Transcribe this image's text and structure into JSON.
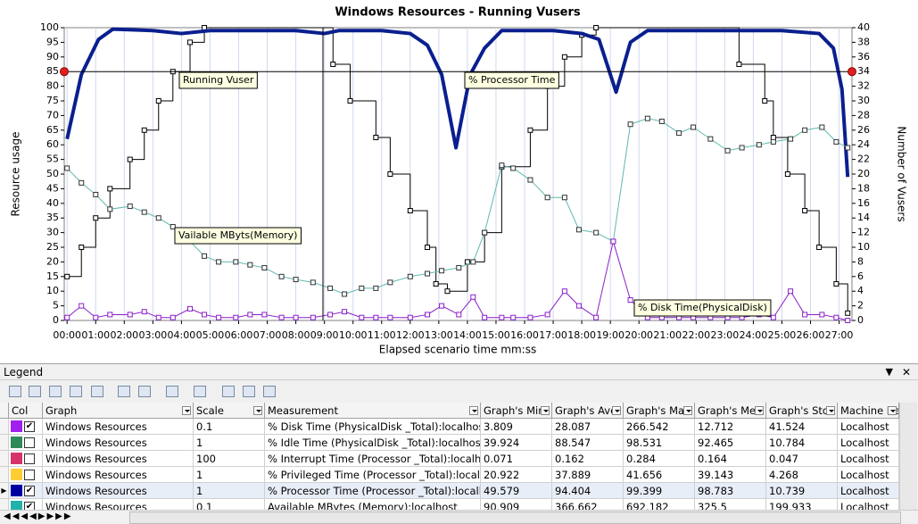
{
  "chart_data": {
    "type": "line",
    "title": "Windows Resources - Running Vusers",
    "xlabel": "Elapsed scenario time mm:ss",
    "ylabel": "Resource usage",
    "y2label": "Number of Vusers",
    "xlim": [
      -0.1,
      27.45
    ],
    "ylim": [
      0,
      100
    ],
    "y2lim": [
      0,
      40
    ],
    "xticks": [
      {
        "value": 0,
        "label": "00:00"
      },
      {
        "value": 1,
        "label": "01:00"
      },
      {
        "value": 2,
        "label": "02:00"
      },
      {
        "value": 3,
        "label": "03:00"
      },
      {
        "value": 4,
        "label": "04:00"
      },
      {
        "value": 5,
        "label": "05:00"
      },
      {
        "value": 6,
        "label": "06:00"
      },
      {
        "value": 7,
        "label": "07:00"
      },
      {
        "value": 8,
        "label": "08:00"
      },
      {
        "value": 9,
        "label": "09:00"
      },
      {
        "value": 10,
        "label": "10:00"
      },
      {
        "value": 11,
        "label": "11:00"
      },
      {
        "value": 12,
        "label": "12:00"
      },
      {
        "value": 13,
        "label": "13:00"
      },
      {
        "value": 14,
        "label": "14:00"
      },
      {
        "value": 15,
        "label": "15:00"
      },
      {
        "value": 16,
        "label": "16:00"
      },
      {
        "value": 17,
        "label": "17:00"
      },
      {
        "value": 18,
        "label": "18:00"
      },
      {
        "value": 19,
        "label": "19:00"
      },
      {
        "value": 20,
        "label": "20:00"
      },
      {
        "value": 21,
        "label": "21:00"
      },
      {
        "value": 22,
        "label": "22:00"
      },
      {
        "value": 23,
        "label": "23:00"
      },
      {
        "value": 24,
        "label": "24:00"
      },
      {
        "value": 25,
        "label": "25:00"
      },
      {
        "value": 26,
        "label": "26:00"
      },
      {
        "value": 27,
        "label": "27:00"
      }
    ],
    "yticks": [
      0,
      5,
      10,
      15,
      20,
      25,
      30,
      35,
      40,
      45,
      50,
      55,
      60,
      65,
      70,
      75,
      80,
      85,
      90,
      95,
      100
    ],
    "y2ticks": [
      0,
      2,
      4,
      6,
      8,
      10,
      12,
      14,
      16,
      18,
      20,
      22,
      24,
      26,
      28,
      30,
      32,
      34,
      36,
      38,
      40
    ],
    "grid": true,
    "series": [
      {
        "name": "Running Vuser",
        "color": "#000000",
        "axis": "y2",
        "step": true,
        "markers": true,
        "x": [
          0,
          0.5,
          1.0,
          1.5,
          2.2,
          2.7,
          3.2,
          3.7,
          4.3,
          4.8,
          9.3,
          9.9,
          10.8,
          11.3,
          12.0,
          12.6,
          12.9,
          13.3,
          14.0,
          14.6,
          15.2,
          16.2,
          16.8,
          17.4,
          18.0,
          18.5,
          23.5,
          24.4,
          24.7,
          25.2,
          25.8,
          26.3,
          26.9,
          27.3
        ],
        "values": [
          6,
          10,
          14,
          18,
          22,
          26,
          30,
          34,
          38,
          40,
          35,
          30,
          25,
          20,
          15,
          10,
          5,
          4,
          8,
          12,
          21,
          26,
          32,
          36,
          39,
          40,
          35,
          30,
          25,
          20,
          15,
          10,
          5,
          1
        ]
      },
      {
        "name": "% Processor Time",
        "color": "#0a1f8f",
        "markers": false,
        "x": [
          0,
          0.5,
          1.1,
          1.6,
          3,
          4,
          5,
          8,
          9,
          9.5,
          11,
          12,
          12.6,
          13.1,
          13.6,
          14.1,
          14.6,
          15.2,
          17,
          18,
          18.6,
          19.2,
          19.7,
          20.3,
          25,
          26.3,
          26.8,
          27.1,
          27.3
        ],
        "values": [
          62,
          84,
          96,
          99.5,
          99,
          98,
          99,
          99,
          98,
          99,
          99,
          98,
          94,
          84,
          59,
          84,
          93,
          99,
          99,
          98,
          96,
          78,
          95,
          99,
          99,
          98,
          93,
          79,
          49
        ]
      },
      {
        "name": "Vailable MByts(Memory)",
        "color": "#5fb8b0",
        "markers": true,
        "x": [
          0,
          0.5,
          1.0,
          1.5,
          2.2,
          2.7,
          3.2,
          3.7,
          4.3,
          4.8,
          5.3,
          5.9,
          6.4,
          6.9,
          7.5,
          8.0,
          8.6,
          9.2,
          9.7,
          10.3,
          10.8,
          11.3,
          12.0,
          12.6,
          13.1,
          13.7,
          14.2,
          14.6,
          15.2,
          15.6,
          16.2,
          16.8,
          17.4,
          17.9,
          18.5,
          19.1,
          19.7,
          20.3,
          20.8,
          21.4,
          21.9,
          22.5,
          23.1,
          23.6,
          24.2,
          24.7,
          25.3,
          25.8,
          26.4,
          26.9,
          27.3
        ],
        "values": [
          52,
          47,
          43,
          38,
          39,
          37,
          35,
          32,
          27,
          22,
          20,
          20,
          19,
          18,
          15,
          14,
          13,
          11,
          9,
          11,
          11,
          13,
          15,
          16,
          17,
          18,
          20,
          30,
          53,
          52,
          48,
          42,
          42,
          31,
          30,
          27,
          67,
          69,
          68,
          64,
          66,
          62,
          58,
          59,
          60,
          61,
          62,
          65,
          66,
          61,
          59
        ]
      },
      {
        "name": "% Disk Time(PhysicalDisk)",
        "color": "#8b1fc9",
        "markers": true,
        "x": [
          0,
          0.5,
          1.0,
          1.5,
          2.2,
          2.7,
          3.2,
          3.7,
          4.3,
          4.8,
          5.3,
          5.9,
          6.4,
          6.9,
          7.5,
          8.0,
          8.6,
          9.2,
          9.7,
          10.3,
          10.8,
          11.3,
          12.0,
          12.6,
          13.1,
          13.7,
          14.2,
          14.6,
          15.2,
          15.6,
          16.2,
          16.8,
          17.4,
          17.9,
          18.5,
          19.1,
          19.7,
          20.3,
          20.8,
          21.4,
          21.9,
          22.5,
          23.1,
          23.6,
          24.2,
          24.7,
          25.3,
          25.8,
          26.4,
          26.9,
          27.3
        ],
        "values": [
          1,
          5,
          1,
          2,
          2,
          3,
          1,
          1,
          4,
          2,
          1,
          1,
          2,
          2,
          1,
          1,
          1,
          2,
          3,
          1,
          1,
          1,
          1,
          2,
          5,
          2,
          8,
          1,
          1,
          1,
          1,
          2,
          10,
          5,
          1,
          27,
          7,
          1,
          1,
          1,
          1,
          1,
          1,
          1,
          2,
          1,
          10,
          2,
          2,
          1,
          0
        ]
      }
    ]
  },
  "legend_panel": {
    "title": "Legend",
    "columns": [
      "Col",
      "Graph",
      "Scale",
      "Measurement",
      "Graph's Mini",
      "Graph's Ave",
      "Graph's Max",
      "Graph's Med",
      "Graph's Std.",
      "Machine Na"
    ],
    "rows": [
      {
        "color": "#a020f0",
        "checked": true,
        "selected": false,
        "cells": [
          "Windows Resources",
          "0.1",
          "% Disk Time (PhysicalDisk _Total):localhost",
          "3.809",
          "28.087",
          "266.542",
          "12.712",
          "41.524",
          "Localhost"
        ]
      },
      {
        "color": "#2e8b57",
        "checked": false,
        "selected": false,
        "cells": [
          "Windows Resources",
          "1",
          "% Idle Time (PhysicalDisk _Total):localhost",
          "39.924",
          "88.547",
          "98.531",
          "92.465",
          "10.784",
          "Localhost"
        ]
      },
      {
        "color": "#d6336c",
        "checked": false,
        "selected": false,
        "cells": [
          "Windows Resources",
          "100",
          "% Interrupt Time (Processor _Total):localhost",
          "0.071",
          "0.162",
          "0.284",
          "0.164",
          "0.047",
          "Localhost"
        ]
      },
      {
        "color": "#ffcc33",
        "checked": false,
        "selected": false,
        "cells": [
          "Windows Resources",
          "1",
          "% Privileged Time (Processor _Total):localhost",
          "20.922",
          "37.889",
          "41.656",
          "39.143",
          "4.268",
          "Localhost"
        ]
      },
      {
        "color": "#0000a0",
        "checked": true,
        "selected": true,
        "cells": [
          "Windows Resources",
          "1",
          "% Processor Time (Processor _Total):localhost",
          "49.579",
          "94.404",
          "99.399",
          "98.783",
          "10.739",
          "Localhost"
        ]
      },
      {
        "color": "#20b2aa",
        "checked": true,
        "selected": false,
        "cells": [
          "Windows Resources",
          "0.1",
          "Available MBytes (Memory):localhost",
          "90.909",
          "366.662",
          "692.182",
          "325.5",
          "199.933",
          "Localhost"
        ]
      }
    ]
  }
}
